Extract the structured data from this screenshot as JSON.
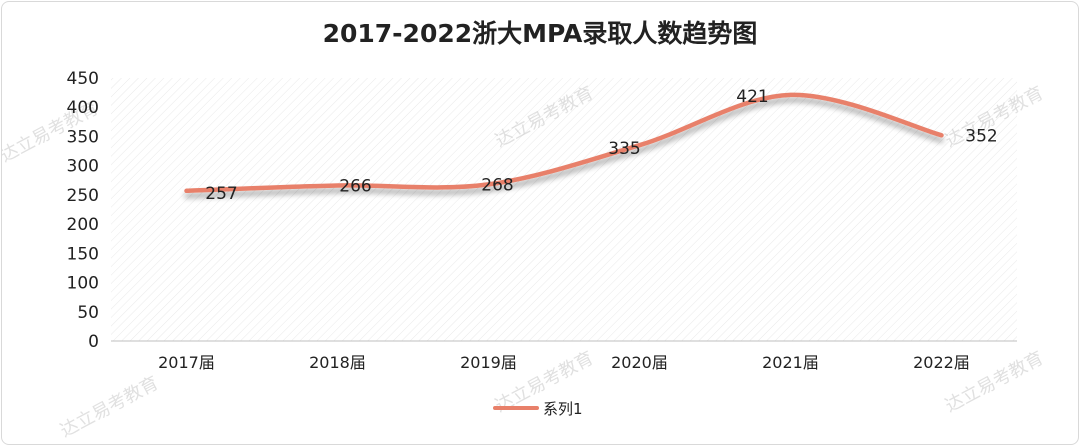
{
  "watermark": "达立易考教育",
  "chart_data": {
    "type": "line",
    "title": "2017-2022浙大MPA录取人数趋势图",
    "categories": [
      "2017届",
      "2018届",
      "2019届",
      "2020届",
      "2021届",
      "2022届"
    ],
    "series": [
      {
        "name": "系列1",
        "values": [
          257,
          266,
          268,
          335,
          421,
          352
        ],
        "color": "#e8806a"
      }
    ],
    "ylim": [
      0,
      450
    ],
    "yticks": [
      0,
      50,
      100,
      150,
      200,
      250,
      300,
      350,
      400,
      450
    ],
    "xlabel": "",
    "ylabel": "",
    "grid": false,
    "smooth": true,
    "data_labels": true,
    "legend": "bottom"
  }
}
